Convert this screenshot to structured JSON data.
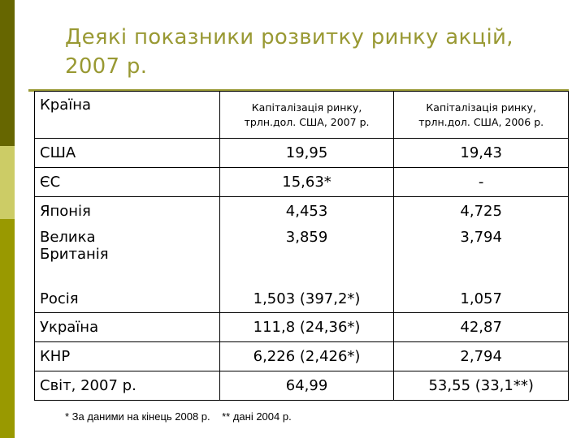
{
  "title": "Деякі показники розвитку ринку акцій, 2007 р.",
  "table": {
    "header": [
      "Країна",
      "Капіталізація ринку, трлн.дол. США, 2007 р.",
      "Капіталізація ринку, трлн.дол. США, 2006 р."
    ],
    "rows": [
      [
        "США",
        "19,95",
        "19,43"
      ],
      [
        "ЄС",
        "15,63*",
        "-"
      ],
      [
        "Японія",
        "4,453",
        "4,725"
      ],
      [
        "Велика Британія",
        "3,859",
        "3,794"
      ],
      [
        "Росія",
        "1,503 (397,2*)",
        "1,057"
      ],
      [
        "Україна",
        "111,8 (24,36*)",
        "42,87"
      ],
      [
        "КНР",
        "6,226 (2,426*)",
        "2,794"
      ],
      [
        "Світ, 2007 р.",
        "64,99",
        "53,55 (33,1**)"
      ]
    ]
  },
  "footnote": "* За даними на кінець 2008 р.    ** дані 2004 р."
}
